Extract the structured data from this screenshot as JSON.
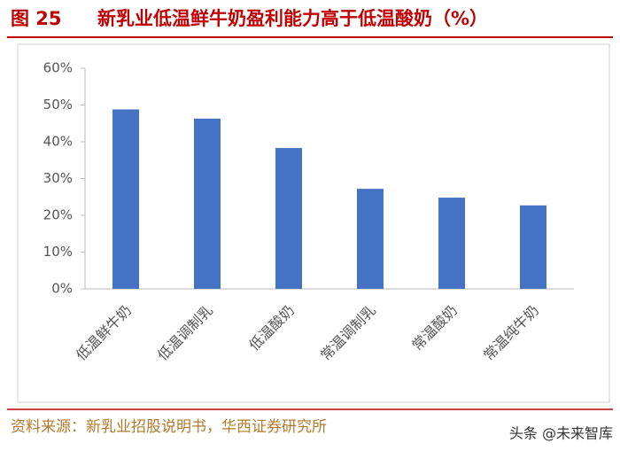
{
  "chart_data": {
    "type": "bar",
    "figure_label": "图 25",
    "title": "新乳业低温鲜牛奶盈利能力高于低温酸奶（%）",
    "categories": [
      "低温鲜牛奶",
      "低温调制乳",
      "低温酸奶",
      "常温调制乳",
      "常温酸奶",
      "常温纯牛奶"
    ],
    "values": [
      48.8,
      46.3,
      38.3,
      27.2,
      24.8,
      22.7
    ],
    "color": "#4472c4",
    "ylim": [
      0,
      60
    ],
    "yticks": [
      {
        "value": 0,
        "label": "0%"
      },
      {
        "value": 10,
        "label": "10%"
      },
      {
        "value": 20,
        "label": "20%"
      },
      {
        "value": 30,
        "label": "30%"
      },
      {
        "value": 40,
        "label": "40%"
      },
      {
        "value": 50,
        "label": "50%"
      },
      {
        "value": 60,
        "label": "60%"
      }
    ],
    "grid": false,
    "source": "资料来源：新乳业招股说明书，华西证券研究所",
    "watermark": "头条 @未来智库"
  }
}
